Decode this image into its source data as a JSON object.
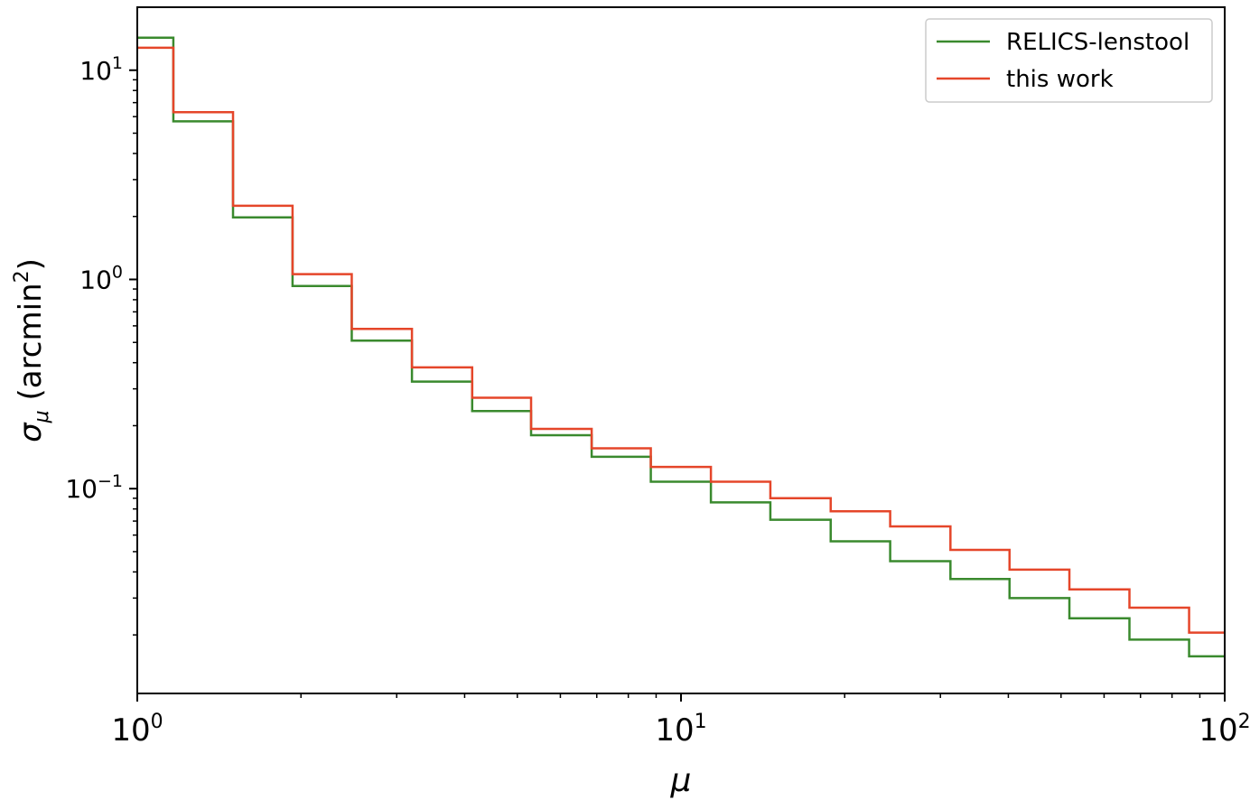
{
  "chart_data": {
    "type": "line",
    "drawstyle": "steps-post",
    "xlabel": "μ",
    "ylabel": "σ_μ (arcmin²)",
    "ylabel_parts": {
      "sym": "σ",
      "sub": "μ",
      "paren_open": " (arcmin",
      "sup": "2",
      "paren_close": ")"
    },
    "xscale": "log",
    "yscale": "log",
    "xlim": [
      1,
      100
    ],
    "ylim": [
      0.0105,
      20
    ],
    "x_ticks": [
      {
        "value": 1,
        "base": "10",
        "exp": "0"
      },
      {
        "value": 10,
        "base": "10",
        "exp": "1"
      },
      {
        "value": 100,
        "base": "10",
        "exp": "2"
      }
    ],
    "y_ticks": [
      {
        "value": 0.1,
        "base": "10",
        "exp": "−1"
      },
      {
        "value": 1,
        "base": "10",
        "exp": "0"
      },
      {
        "value": 10,
        "base": "10",
        "exp": "1"
      }
    ],
    "bin_edges": [
      1.0,
      1.165,
      1.5,
      1.93,
      2.48,
      3.2,
      4.13,
      5.3,
      6.85,
      8.8,
      11.35,
      14.6,
      18.85,
      24.25,
      31.3,
      40.2,
      51.8,
      66.8,
      86.0,
      100.0
    ],
    "series": [
      {
        "name": "RELICS-lenstool",
        "color": "#3a8a2e",
        "values": [
          14.3,
          5.7,
          1.98,
          0.93,
          0.51,
          0.325,
          0.235,
          0.18,
          0.142,
          0.108,
          0.086,
          0.071,
          0.056,
          0.045,
          0.037,
          0.03,
          0.024,
          0.019,
          0.0158
        ]
      },
      {
        "name": "this work",
        "color": "#e5462a",
        "values": [
          12.8,
          6.3,
          2.25,
          1.06,
          0.58,
          0.38,
          0.272,
          0.193,
          0.156,
          0.127,
          0.108,
          0.09,
          0.078,
          0.066,
          0.051,
          0.041,
          0.033,
          0.027,
          0.0205
        ]
      }
    ],
    "legend_position": "top-right",
    "grid": false
  }
}
